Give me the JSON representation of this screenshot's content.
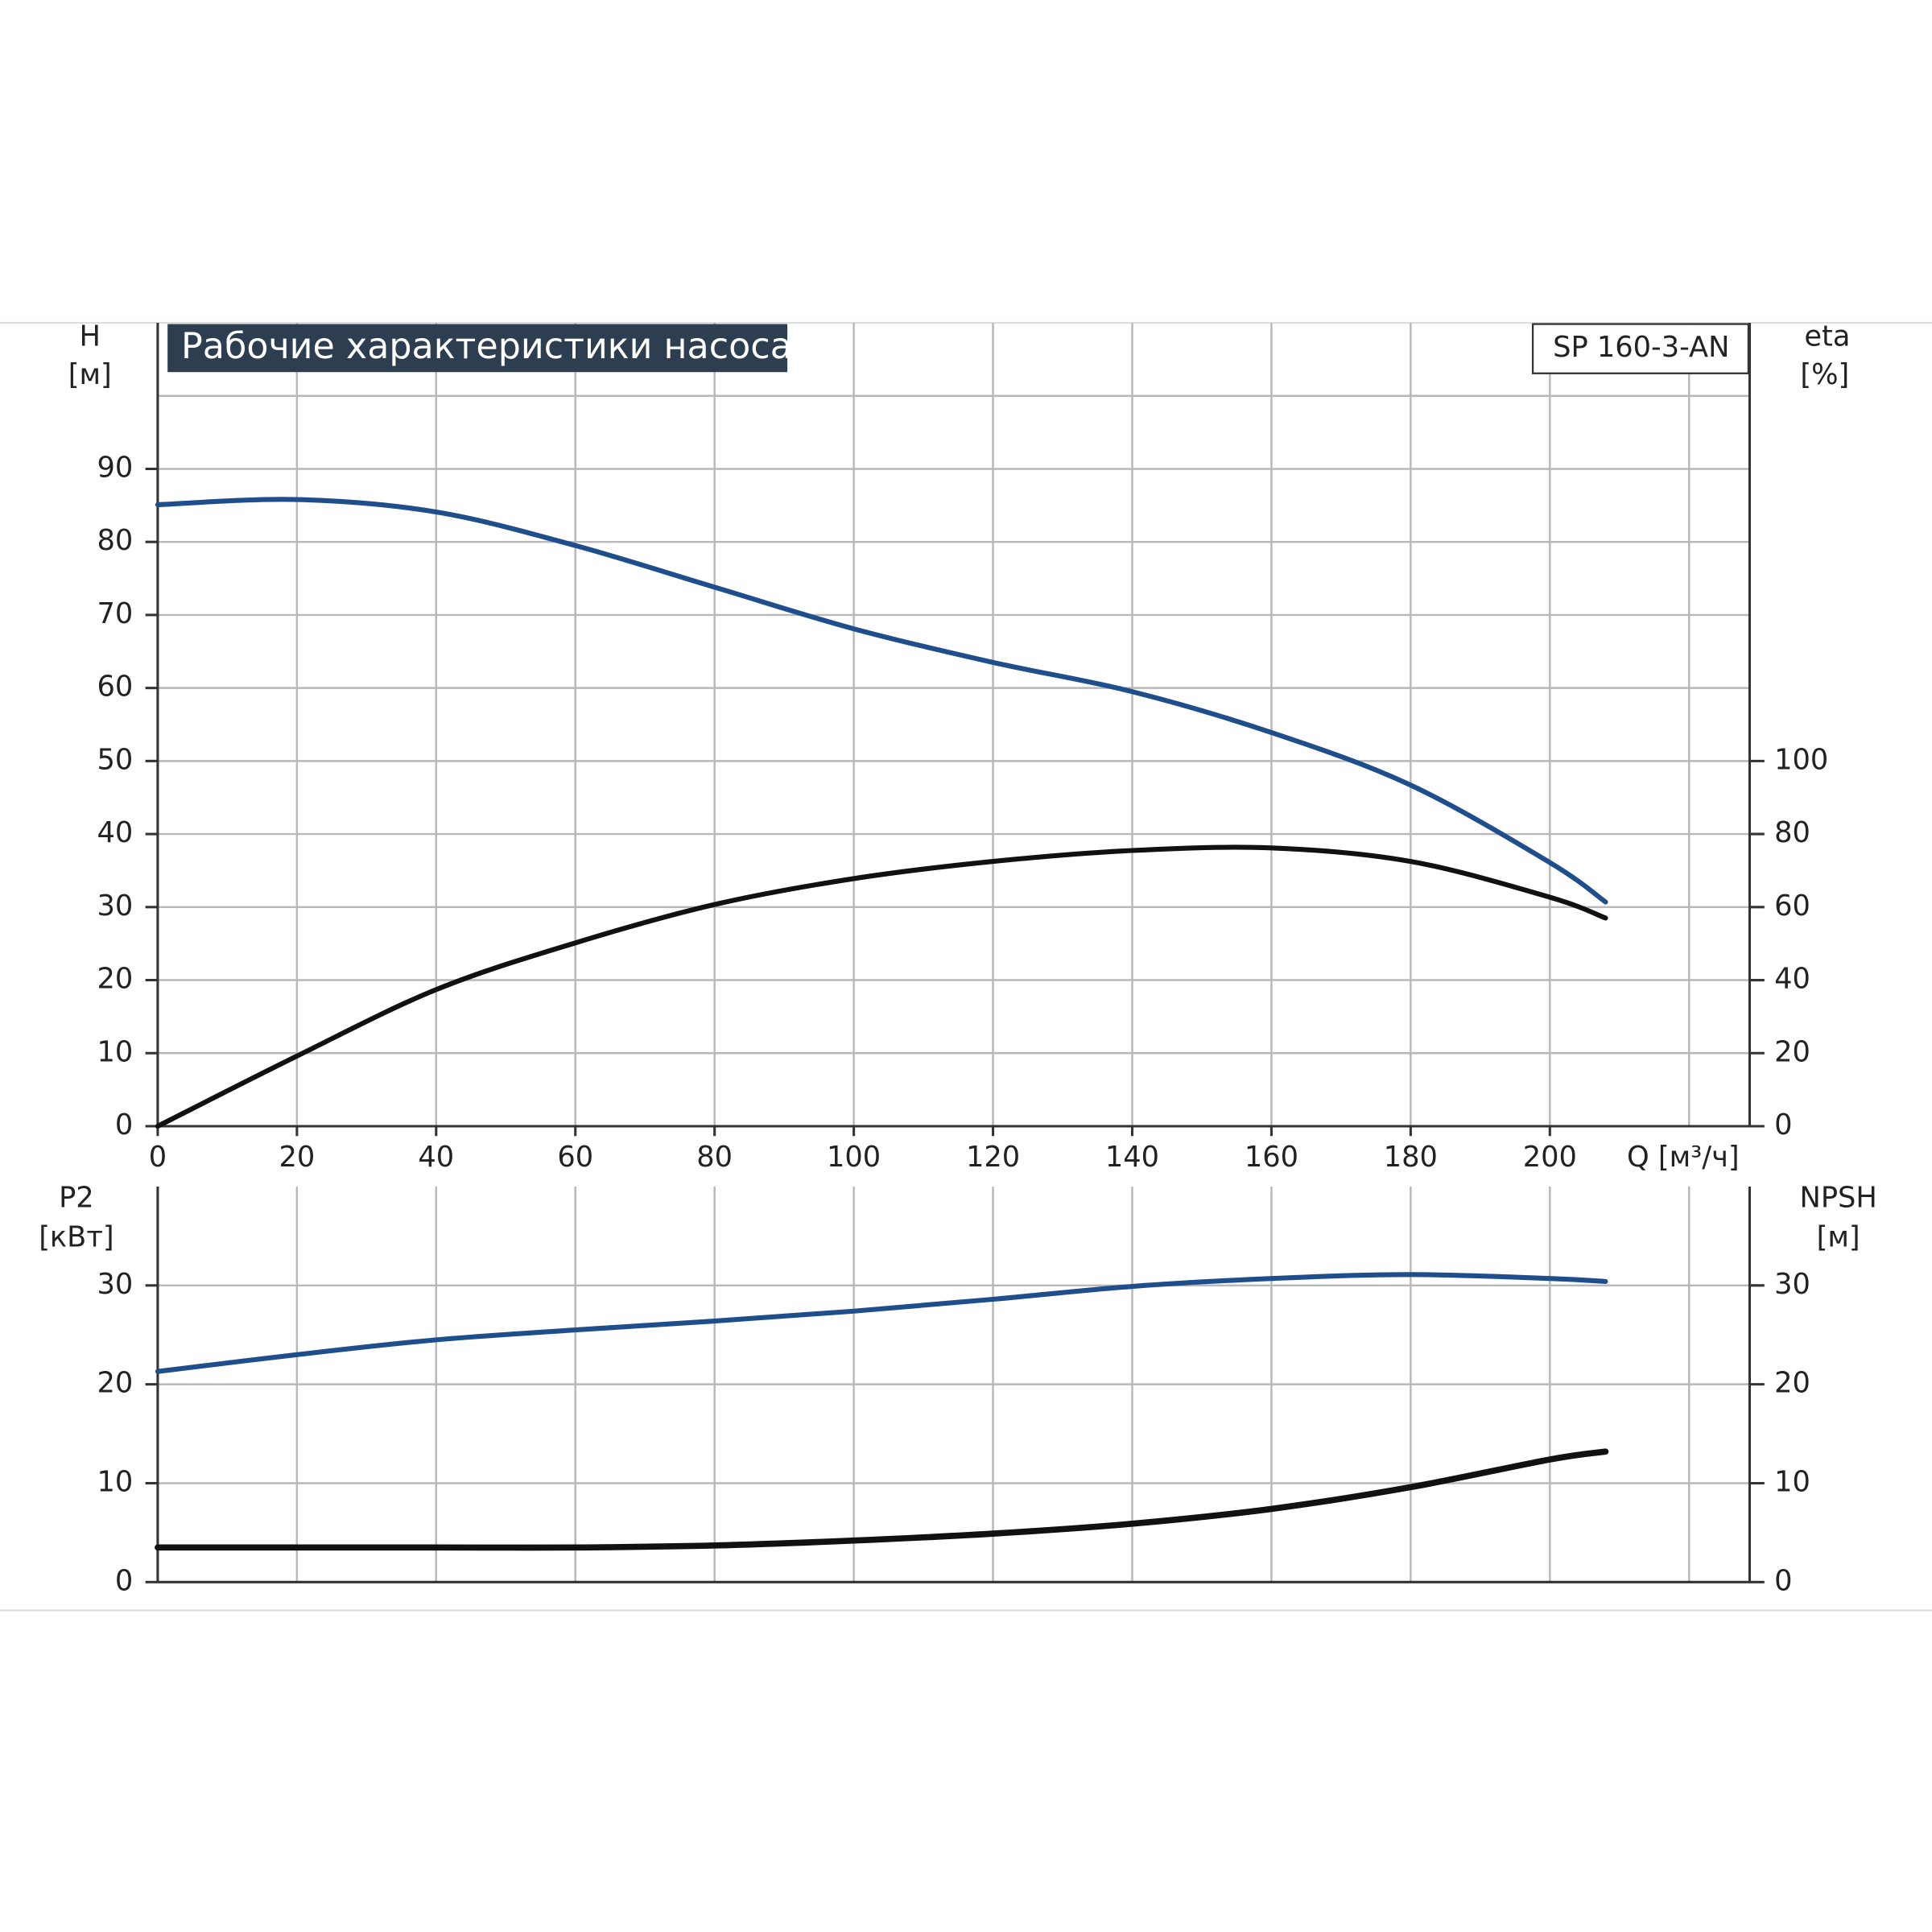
{
  "chart_data": [
    {
      "type": "line",
      "title": "Рабочие характеристики насоса",
      "model": "SP 160-3-AN",
      "ylabel": [
        "H",
        "[м]"
      ],
      "y2label": [
        "eta",
        "[%]"
      ],
      "xlabel": "Q [м³/ч]",
      "xlim": [
        0,
        228.7
      ],
      "xticks": [
        0,
        20,
        40,
        60,
        80,
        100,
        120,
        140,
        160,
        180,
        200
      ],
      "xgrid": [
        20,
        40,
        60,
        80,
        100,
        120,
        140,
        160,
        180,
        200,
        220
      ],
      "ylim": [
        0,
        110
      ],
      "yticks": [
        0,
        10,
        20,
        30,
        40,
        50,
        60,
        70,
        80,
        90
      ],
      "ygrid": [
        10,
        20,
        30,
        40,
        50,
        60,
        70,
        80,
        90,
        100
      ],
      "y2lim": [
        0,
        220
      ],
      "y2ticks": [
        0,
        20,
        40,
        60,
        80,
        100
      ],
      "x": [
        0,
        20,
        40,
        60,
        80,
        100,
        120,
        140,
        160,
        180,
        200,
        208
      ],
      "series": [
        {
          "color": "#1f4e8c",
          "values": [
            85.1,
            85.8,
            84.1,
            79.5,
            73.8,
            68.1,
            63.5,
            59.5,
            53.9,
            46.7,
            36.1,
            30.7
          ]
        },
        {
          "color": "#111111",
          "axis": "y2",
          "values": [
            0,
            19.2,
            37.4,
            50.2,
            60.7,
            67.8,
            72.5,
            75.5,
            76.2,
            72.5,
            62.7,
            57.0
          ]
        }
      ]
    },
    {
      "type": "line",
      "ylabel": [
        "P2",
        "[кВт]"
      ],
      "y2label": [
        "NPSH",
        "[м]"
      ],
      "xlim": [
        0,
        228.7
      ],
      "xgrid": [
        20,
        40,
        60,
        80,
        100,
        120,
        140,
        160,
        180,
        200,
        220
      ],
      "ylim": [
        0,
        40
      ],
      "yticks": [
        0,
        10,
        20,
        30
      ],
      "ygrid": [
        10,
        20,
        30
      ],
      "y2lim": [
        0,
        40
      ],
      "y2ticks": [
        0,
        10,
        20,
        30
      ],
      "x": [
        0,
        20,
        40,
        60,
        80,
        100,
        120,
        140,
        160,
        180,
        200,
        208
      ],
      "series": [
        {
          "color": "#1f4e8c",
          "values": [
            21.3,
            23.0,
            24.5,
            25.5,
            26.4,
            27.4,
            28.6,
            29.9,
            30.7,
            31.1,
            30.7,
            30.4
          ]
        },
        {
          "color": "#111111",
          "axis": "y2",
          "width": 5,
          "values": [
            3.5,
            3.5,
            3.5,
            3.5,
            3.7,
            4.2,
            4.9,
            5.9,
            7.4,
            9.6,
            12.4,
            13.2
          ]
        }
      ]
    }
  ]
}
